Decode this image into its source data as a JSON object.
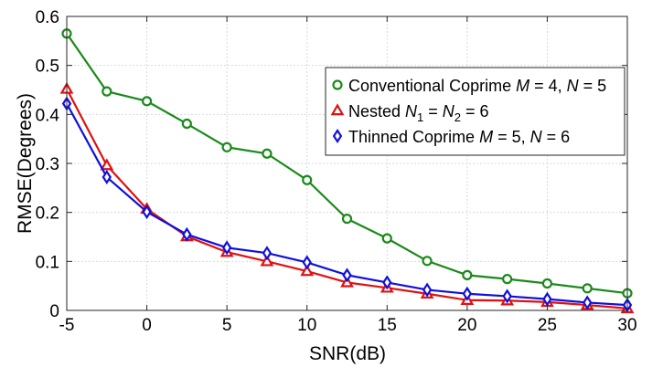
{
  "chart_data": {
    "type": "line",
    "title": "",
    "xlabel": "SNR(dB)",
    "ylabel": "RMSE(Degrees)",
    "xlim": [
      -5,
      30
    ],
    "ylim": [
      0,
      0.6
    ],
    "xticks": [
      "-5",
      "0",
      "5",
      "10",
      "15",
      "20",
      "25",
      "30"
    ],
    "yticks": [
      "0",
      "0.1",
      "0.2",
      "0.3",
      "0.4",
      "0.5",
      "0.6"
    ],
    "grid": true,
    "legend_position": "top-right",
    "x": [
      -5,
      -2.5,
      0,
      2.5,
      5,
      7.5,
      10,
      12.5,
      15,
      17.5,
      20,
      22.5,
      25,
      27.5,
      30
    ],
    "series": [
      {
        "name": "Conventional Coprime M = 4, N = 5",
        "legend_parts": [
          [
            "Conventional Coprime ",
            ""
          ],
          [
            "M",
            "it"
          ],
          [
            " = 4, ",
            ""
          ],
          [
            "N",
            "it"
          ],
          [
            " = 5",
            ""
          ]
        ],
        "color": "#1a8a1a",
        "marker": "circle",
        "values": [
          0.565,
          0.447,
          0.427,
          0.381,
          0.333,
          0.32,
          0.266,
          0.187,
          0.147,
          0.101,
          0.072,
          0.064,
          0.055,
          0.045,
          0.035
        ]
      },
      {
        "name": "Nested N1 = N2 = 6",
        "legend_parts": [
          [
            "Nested ",
            ""
          ],
          [
            "N",
            "it"
          ],
          [
            "1",
            "sub"
          ],
          [
            " = ",
            ""
          ],
          [
            "N",
            "it"
          ],
          [
            "2",
            "sub"
          ],
          [
            " = 6",
            ""
          ]
        ],
        "color": "#e01010",
        "marker": "triangle",
        "values": [
          0.452,
          0.296,
          0.207,
          0.151,
          0.119,
          0.1,
          0.08,
          0.057,
          0.046,
          0.034,
          0.021,
          0.02,
          0.017,
          0.011,
          0.004
        ]
      },
      {
        "name": "Thinned Coprime M = 5, N = 6",
        "legend_parts": [
          [
            "Thinned Coprime ",
            ""
          ],
          [
            "M",
            "it"
          ],
          [
            " = 5, ",
            ""
          ],
          [
            "N",
            "it"
          ],
          [
            " = 6",
            ""
          ]
        ],
        "color": "#1010dd",
        "marker": "diamond",
        "values": [
          0.422,
          0.272,
          0.201,
          0.155,
          0.128,
          0.117,
          0.098,
          0.072,
          0.057,
          0.042,
          0.034,
          0.029,
          0.023,
          0.016,
          0.011
        ]
      }
    ]
  }
}
